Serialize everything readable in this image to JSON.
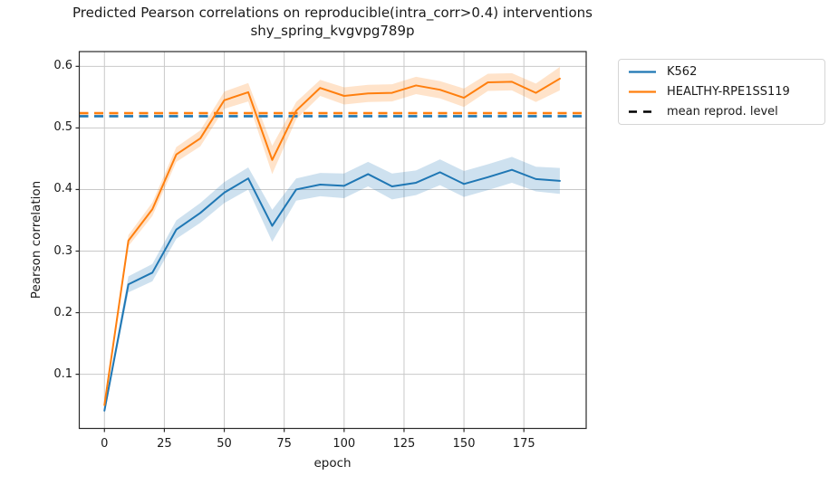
{
  "chart_data": {
    "type": "line",
    "title": "Predicted Pearson correlations on reproducible(intra_corr>0.4) interventions",
    "subtitle": "shy_spring_kvgvpg789p",
    "xlabel": "epoch",
    "ylabel": "Pearson correlation",
    "xlim": [
      -10.5,
      201
    ],
    "ylim": [
      0.012,
      0.624
    ],
    "grid": true,
    "background_color": "#ffffff",
    "grid_color": "#c9c9c9",
    "spine_color": "#2a2a2a",
    "x": [
      0,
      10,
      20,
      30,
      40,
      50,
      60,
      70,
      80,
      90,
      100,
      110,
      120,
      130,
      140,
      150,
      160,
      170,
      180,
      190
    ],
    "x_tick_labels": [
      "0",
      "25",
      "50",
      "75",
      "100",
      "125",
      "150",
      "175"
    ],
    "y_tick_labels": [
      "0.1",
      "0.2",
      "0.3",
      "0.4",
      "0.5",
      "0.6"
    ],
    "series": [
      {
        "name": "K562",
        "color": "#1f77b4",
        "values": [
          0.041,
          0.246,
          0.265,
          0.335,
          0.362,
          0.395,
          0.418,
          0.341,
          0.4,
          0.408,
          0.406,
          0.425,
          0.405,
          0.411,
          0.428,
          0.409,
          0.42,
          0.432,
          0.417,
          0.414
        ],
        "band_halfwidth": [
          0.006,
          0.013,
          0.014,
          0.015,
          0.016,
          0.017,
          0.018,
          0.026,
          0.018,
          0.019,
          0.02,
          0.02,
          0.021,
          0.02,
          0.021,
          0.021,
          0.021,
          0.021,
          0.02,
          0.021
        ]
      },
      {
        "name": "HEALTHY-RPE1SS119",
        "color": "#ff7f0e",
        "values": [
          0.05,
          0.317,
          0.368,
          0.457,
          0.483,
          0.545,
          0.558,
          0.448,
          0.528,
          0.565,
          0.552,
          0.556,
          0.557,
          0.569,
          0.562,
          0.549,
          0.574,
          0.575,
          0.557,
          0.58
        ],
        "band_halfwidth": [
          0.005,
          0.009,
          0.011,
          0.012,
          0.013,
          0.014,
          0.015,
          0.023,
          0.014,
          0.013,
          0.014,
          0.014,
          0.014,
          0.014,
          0.014,
          0.015,
          0.014,
          0.014,
          0.015,
          0.019
        ]
      }
    ],
    "mean_reprod_lines": [
      {
        "y": 0.519,
        "color": "#1f77b4",
        "style": "dashed"
      },
      {
        "y": 0.524,
        "color": "#ff7f0e",
        "style": "dashed"
      }
    ],
    "legend": {
      "position": "outside-upper-right",
      "items": [
        {
          "label": "K562",
          "color": "#1f77b4",
          "style": "solid"
        },
        {
          "label": "HEALTHY-RPE1SS119",
          "color": "#ff7f0e",
          "style": "solid"
        },
        {
          "label": "mean reprod. level",
          "color": "#000000",
          "style": "dashed"
        }
      ]
    }
  }
}
